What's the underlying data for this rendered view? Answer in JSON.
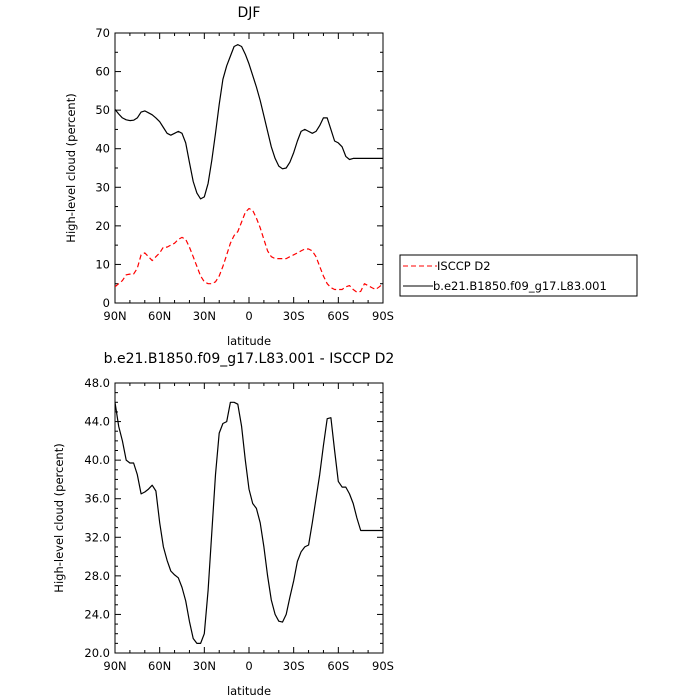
{
  "chart_data": [
    {
      "type": "line",
      "title": "DJF",
      "xlabel": "latitude",
      "ylabel": "High-level cloud (percent)",
      "xlim": [
        90,
        -90
      ],
      "ylim": [
        0,
        70
      ],
      "x_ticks": [
        90,
        60,
        30,
        0,
        -30,
        -60,
        -90
      ],
      "x_tick_labels": [
        "90N",
        "60N",
        "30N",
        "0",
        "30S",
        "60S",
        "90S"
      ],
      "y_ticks": [
        0,
        10,
        20,
        30,
        40,
        50,
        60,
        70
      ],
      "y_tick_labels": [
        "0",
        "10",
        "20",
        "30",
        "40",
        "50",
        "60",
        "70"
      ],
      "grid": false,
      "legend": "outside-right",
      "series": [
        {
          "name": "ISCCP D2",
          "color": "#ff0000",
          "dash": "dashed",
          "x": [
            90,
            87.5,
            85,
            82.5,
            80,
            77.5,
            75,
            72.5,
            70,
            67.5,
            65,
            62.5,
            60,
            57.5,
            55,
            52.5,
            50,
            47.5,
            45,
            42.5,
            40,
            37.5,
            35,
            32.5,
            30,
            27.5,
            25,
            22.5,
            20,
            17.5,
            15,
            12.5,
            10,
            7.5,
            5,
            2.5,
            0,
            -2.5,
            -5,
            -7.5,
            -10,
            -12.5,
            -15,
            -17.5,
            -20,
            -22.5,
            -25,
            -27.5,
            -30,
            -32.5,
            -35,
            -37.5,
            -40,
            -42.5,
            -45,
            -47.5,
            -50,
            -52.5,
            -55,
            -57.5,
            -60,
            -62.5,
            -65,
            -67.5,
            -70,
            -72.5,
            -75,
            -77.5,
            -80,
            -82.5,
            -85,
            -87.5,
            -90
          ],
          "values": [
            4.2,
            5.0,
            5.8,
            7.3,
            7.5,
            7.5,
            9.0,
            12.5,
            13.0,
            12.0,
            11.0,
            12.0,
            13.0,
            14.5,
            14.5,
            15.0,
            15.5,
            16.5,
            17.0,
            16.5,
            14.5,
            12.0,
            9.5,
            7.0,
            5.5,
            5.0,
            5.0,
            5.5,
            7.0,
            9.5,
            12.5,
            15.5,
            17.5,
            18.5,
            21.0,
            23.5,
            24.5,
            24.0,
            22.0,
            19.5,
            16.5,
            13.5,
            12.0,
            11.5,
            11.5,
            11.5,
            11.5,
            12.0,
            12.5,
            13.0,
            13.5,
            14.0,
            14.0,
            13.5,
            12.0,
            9.5,
            7.0,
            5.0,
            4.0,
            3.5,
            3.5,
            3.5,
            4.2,
            4.5,
            3.5,
            2.8,
            3.0,
            5.0,
            4.5,
            4.0,
            3.5,
            4.2,
            5.0
          ]
        },
        {
          "name": "b.e21.B1850.f09_g17.L83.001",
          "color": "#000000",
          "dash": "solid",
          "x": [
            90,
            87.5,
            85,
            82.5,
            80,
            77.5,
            75,
            72.5,
            70,
            67.5,
            65,
            62.5,
            60,
            57.5,
            55,
            52.5,
            50,
            47.5,
            45,
            42.5,
            40,
            37.5,
            35,
            32.5,
            30,
            27.5,
            25,
            22.5,
            20,
            17.5,
            15,
            12.5,
            10,
            7.5,
            5,
            2.5,
            0,
            -2.5,
            -5,
            -7.5,
            -10,
            -12.5,
            -15,
            -17.5,
            -20,
            -22.5,
            -25,
            -27.5,
            -30,
            -32.5,
            -35,
            -37.5,
            -40,
            -42.5,
            -45,
            -47.5,
            -50,
            -52.5,
            -55,
            -57.5,
            -60,
            -62.5,
            -65,
            -67.5,
            -70,
            -72.5,
            -75,
            -77.5,
            -80,
            -82.5,
            -85,
            -87.5,
            -90
          ],
          "values": [
            50.2,
            49.0,
            48.0,
            47.5,
            47.3,
            47.4,
            48.0,
            49.5,
            49.8,
            49.3,
            48.8,
            48.0,
            47.0,
            45.5,
            44.0,
            43.5,
            44.0,
            44.5,
            44.0,
            41.5,
            36.5,
            31.5,
            28.5,
            27.0,
            27.5,
            31.0,
            37.0,
            44.0,
            51.5,
            58.0,
            61.5,
            64.0,
            66.5,
            67.0,
            66.5,
            64.5,
            62.0,
            59.0,
            56.0,
            52.5,
            48.5,
            44.5,
            40.5,
            37.5,
            35.5,
            34.8,
            35.0,
            36.5,
            39.0,
            42.0,
            44.5,
            45.0,
            44.5,
            44.0,
            44.5,
            46.0,
            48.0,
            48.0,
            45.0,
            42.0,
            41.5,
            40.5,
            38.0,
            37.2,
            37.5,
            37.5,
            37.5,
            37.5,
            37.5,
            37.5,
            37.5,
            37.5,
            37.5
          ]
        }
      ]
    },
    {
      "type": "line",
      "title": "b.e21.B1850.f09_g17.L83.001 - ISCCP D2",
      "xlabel": "latitude",
      "ylabel": "High-level cloud (percent)",
      "xlim": [
        90,
        -90
      ],
      "ylim": [
        20,
        48
      ],
      "x_ticks": [
        90,
        60,
        30,
        0,
        -30,
        -60,
        -90
      ],
      "x_tick_labels": [
        "90N",
        "60N",
        "30N",
        "0",
        "30S",
        "60S",
        "90S"
      ],
      "y_ticks": [
        20,
        24,
        28,
        32,
        36,
        40,
        44,
        48
      ],
      "y_tick_labels": [
        "20.0",
        "24.0",
        "28.0",
        "32.0",
        "36.0",
        "40.0",
        "44.0",
        "48.0"
      ],
      "grid": false,
      "legend": "none",
      "series": [
        {
          "color": "#000000",
          "dash": "solid",
          "x": [
            90,
            87.5,
            85,
            82.5,
            80,
            77.5,
            75,
            72.5,
            70,
            67.5,
            65,
            62.5,
            60,
            57.5,
            55,
            52.5,
            50,
            47.5,
            45,
            42.5,
            40,
            37.5,
            35,
            32.5,
            30,
            27.5,
            25,
            22.5,
            20,
            17.5,
            15,
            12.5,
            10,
            7.5,
            5,
            2.5,
            0,
            -2.5,
            -5,
            -7.5,
            -10,
            -12.5,
            -15,
            -17.5,
            -20,
            -22.5,
            -25,
            -27.5,
            -30,
            -32.5,
            -35,
            -37.5,
            -40,
            -42.5,
            -45,
            -47.5,
            -50,
            -52.5,
            -55,
            -57.5,
            -60,
            -62.5,
            -65,
            -67.5,
            -70,
            -72.5,
            -75,
            -77.5,
            -80,
            -82.5,
            -85,
            -87.5,
            -90
          ],
          "values": [
            46.0,
            43.5,
            42.0,
            40.0,
            39.7,
            39.7,
            38.5,
            36.5,
            36.7,
            37.0,
            37.4,
            36.8,
            33.5,
            31.0,
            29.6,
            28.5,
            28.1,
            27.8,
            26.8,
            25.4,
            23.3,
            21.5,
            21.0,
            21.0,
            22.0,
            26.5,
            32.5,
            38.5,
            42.8,
            43.8,
            44.0,
            46.0,
            46.0,
            45.8,
            43.5,
            40.0,
            37.0,
            35.5,
            35.0,
            33.5,
            31.0,
            28.0,
            25.5,
            24.0,
            23.3,
            23.2,
            24.0,
            25.8,
            27.5,
            29.5,
            30.5,
            31.0,
            31.2,
            33.5,
            36.0,
            38.5,
            41.5,
            44.3,
            44.4,
            41.0,
            37.8,
            37.2,
            37.2,
            36.5,
            35.5,
            34.0,
            32.7,
            32.7,
            32.7,
            32.7,
            32.7,
            32.7,
            32.7
          ]
        }
      ]
    }
  ]
}
